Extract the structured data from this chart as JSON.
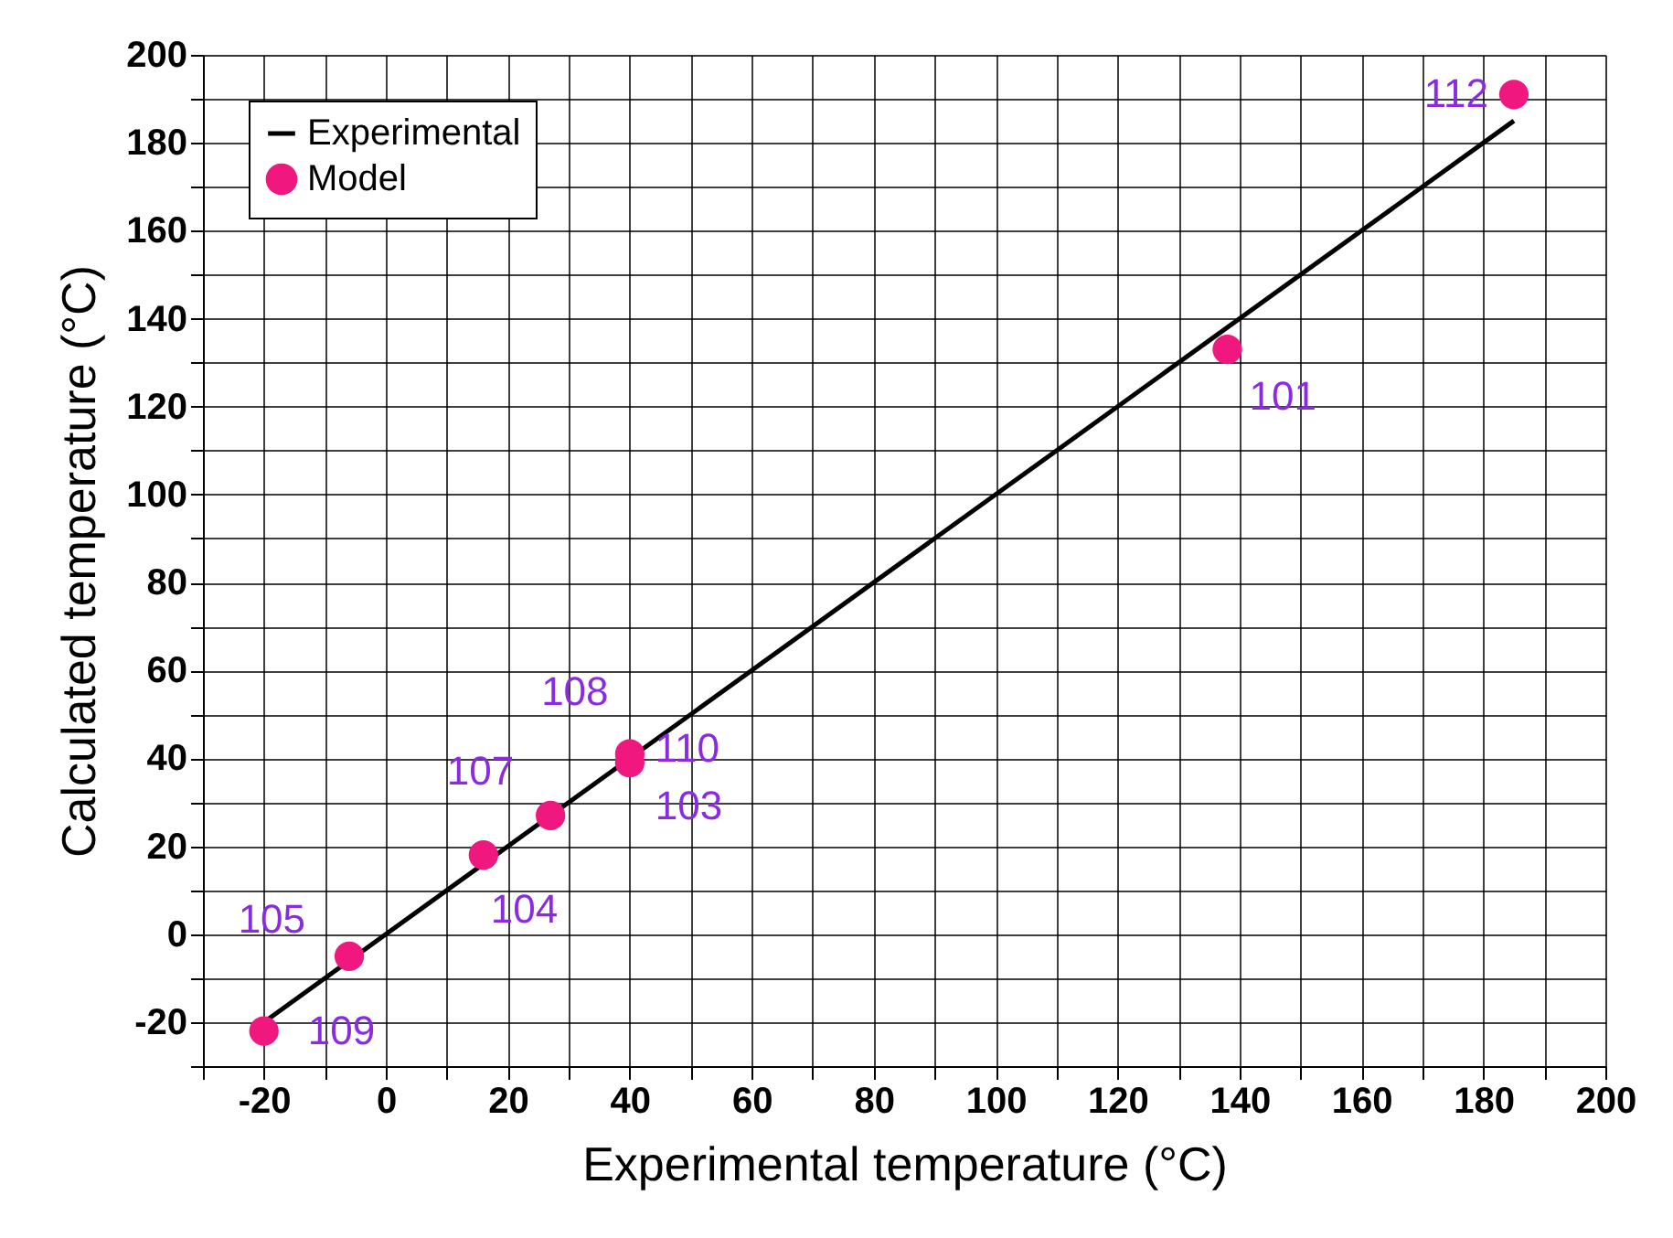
{
  "chart_data": {
    "type": "scatter",
    "xlabel": "Experimental temperature (°C)",
    "ylabel": "Calculated temperature (°C)",
    "xlim": [
      -30,
      200
    ],
    "ylim": [
      -30,
      200
    ],
    "xticks": [
      {
        "value": -30,
        "label": null
      },
      -20,
      {
        "value": -10,
        "label": null
      },
      0,
      {
        "value": 10,
        "label": null
      },
      20,
      {
        "value": 30,
        "label": null
      },
      40,
      {
        "value": 50,
        "label": null
      },
      60,
      {
        "value": 70,
        "label": null
      },
      80,
      {
        "value": 90,
        "label": null
      },
      100,
      {
        "value": 110,
        "label": null
      },
      120,
      {
        "value": 130,
        "label": null
      },
      140,
      {
        "value": 150,
        "label": null
      },
      160,
      {
        "value": 170,
        "label": null
      },
      180,
      {
        "value": 190,
        "label": null
      },
      200
    ],
    "yticks": [
      {
        "value": -30,
        "label": null
      },
      -20,
      {
        "value": -10,
        "label": null
      },
      0,
      {
        "value": 10,
        "label": null
      },
      20,
      {
        "value": 30,
        "label": null
      },
      40,
      {
        "value": 50,
        "label": null
      },
      60,
      {
        "value": 70,
        "label": null
      },
      80,
      {
        "value": 90,
        "label": null
      },
      100,
      {
        "value": 110,
        "label": null
      },
      120,
      {
        "value": 130,
        "label": null
      },
      140,
      {
        "value": 150,
        "label": null
      },
      160,
      {
        "value": 170,
        "label": null
      },
      180,
      {
        "value": 190,
        "label": null
      },
      200
    ],
    "grid": true,
    "legend": "top left",
    "series": [
      {
        "name": "Experimental",
        "type": "line",
        "color": "#000000",
        "x": [
          -20,
          185
        ],
        "values": [
          -20,
          185
        ]
      },
      {
        "name": "Model",
        "type": "scatter",
        "color": "#f0177f",
        "marker": "circle",
        "x": [
          -20,
          -6,
          16,
          27,
          40,
          40,
          138,
          185
        ],
        "values": [
          -22,
          -5,
          18,
          27,
          39,
          41,
          133,
          191
        ]
      }
    ],
    "annotations": [
      {
        "text": "109",
        "x": -20,
        "y": -22
      },
      {
        "text": "105",
        "x": -6,
        "y": -5
      },
      {
        "text": "104",
        "x": 16,
        "y": 18
      },
      {
        "text": "107",
        "x": 27,
        "y": 27
      },
      {
        "text": "108",
        "x": 40,
        "y": 41
      },
      {
        "text": "110",
        "x": 40,
        "y": 41
      },
      {
        "text": "103",
        "x": 40,
        "y": 39
      },
      {
        "text": "101",
        "x": 138,
        "y": 133
      },
      {
        "text": "112",
        "x": 185,
        "y": 191
      }
    ]
  }
}
